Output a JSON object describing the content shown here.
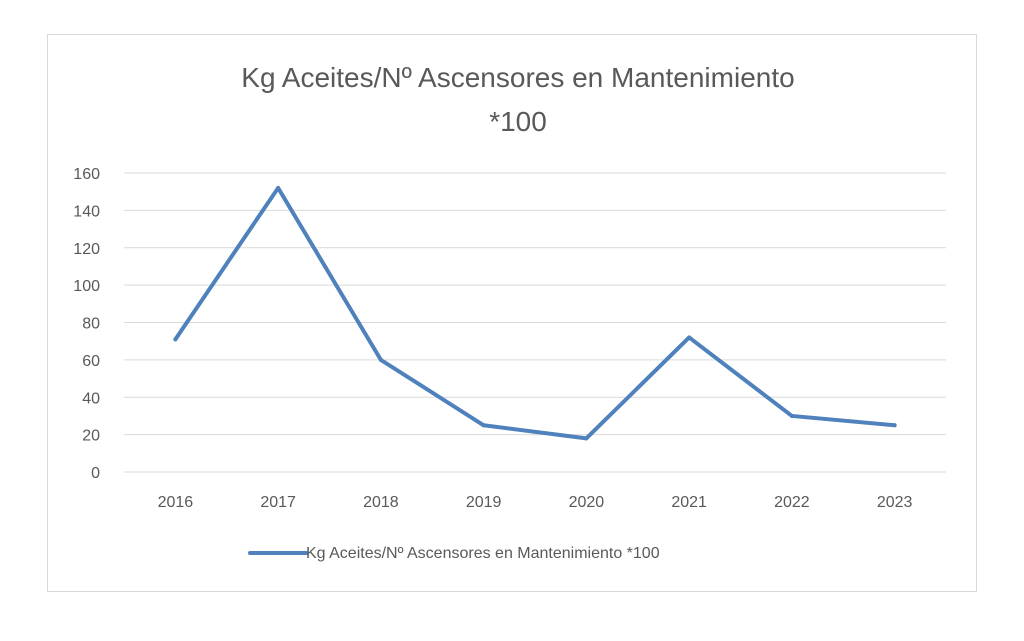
{
  "chart_data": {
    "type": "line",
    "title": "Kg Aceites/Nº Ascensores en Mantenimiento *100",
    "title_lines": [
      "Kg Aceites/Nº Ascensores en Mantenimiento",
      "*100"
    ],
    "categories": [
      "2016",
      "2017",
      "2018",
      "2019",
      "2020",
      "2021",
      "2022",
      "2023"
    ],
    "series": [
      {
        "name": "Kg Aceites/Nº Ascensores en Mantenimiento *100",
        "values": [
          71,
          152,
          60,
          25,
          18,
          72,
          30,
          25
        ],
        "color": "#4f81bd"
      }
    ],
    "yticks": [
      "0",
      "20",
      "40",
      "60",
      "80",
      "100",
      "120",
      "140",
      "160"
    ],
    "ylim": [
      0,
      160
    ],
    "grid": true,
    "legend": "bottom"
  }
}
